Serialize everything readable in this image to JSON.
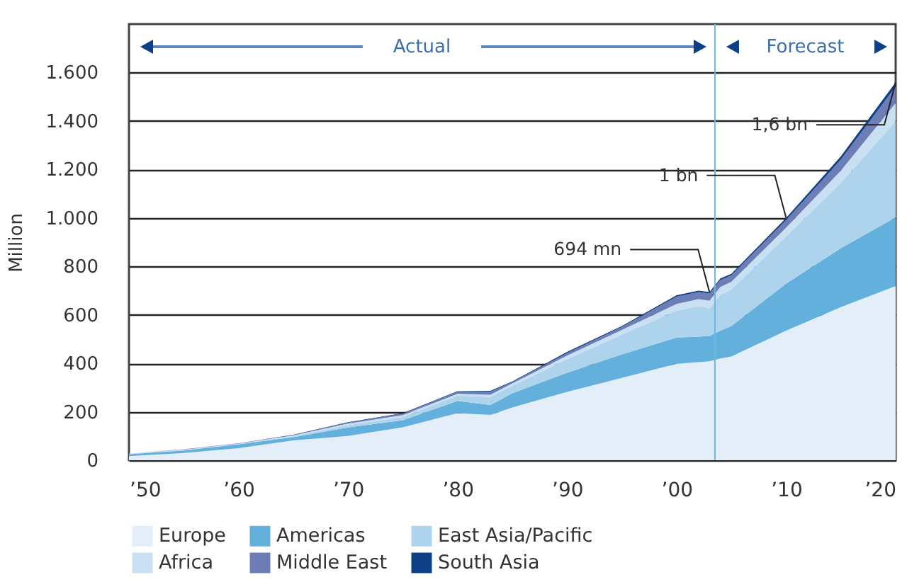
{
  "chart_data": {
    "type": "area",
    "stacked": true,
    "ylabel": "Million",
    "x": [
      1950,
      1955,
      1960,
      1965,
      1970,
      1975,
      1980,
      1983,
      1985,
      1990,
      1995,
      2000,
      2002,
      2003,
      2004,
      2005,
      2010,
      2015,
      2020
    ],
    "series": [
      {
        "name": "Europe",
        "color": "#e3eef8",
        "values": [
          17,
          30,
          50,
          82,
          100,
          136,
          194,
          187,
          218,
          282,
          340,
          398,
          405,
          408,
          420,
          428,
          535,
          632,
          719
        ]
      },
      {
        "name": "Americas",
        "color": "#63b0dc",
        "values": [
          8,
          10,
          16,
          13,
          35,
          29,
          51,
          41,
          58,
          79,
          97,
          108,
          105,
          105,
          115,
          126,
          194,
          243,
          283
        ]
      },
      {
        "name": "East Asia/Pacific",
        "color": "#aed3ec",
        "values": [
          1,
          2,
          1,
          4,
          10,
          13,
          22,
          33,
          31,
          56,
          82,
          111,
          126,
          114,
          147,
          150,
          195,
          270,
          397
        ]
      },
      {
        "name": "Africa",
        "color": "#c9e0f3",
        "values": [
          1,
          2,
          2,
          3,
          6,
          8,
          7,
          9,
          10,
          15,
          19,
          28,
          29,
          31,
          33,
          32,
          36,
          50,
          75
        ]
      },
      {
        "name": "Middle East",
        "color": "#6d7db5",
        "values": [
          0,
          1,
          1,
          2,
          4,
          6,
          8,
          13,
          5,
          10,
          12,
          30,
          29,
          30,
          29,
          27,
          31,
          46,
          68
        ]
      },
      {
        "name": "South Asia",
        "color": "#0d3f87",
        "values": [
          0,
          0,
          0,
          1,
          2,
          2,
          3,
          3,
          3,
          5,
          4,
          6,
          6,
          6,
          6,
          6,
          9,
          13,
          18
        ]
      }
    ],
    "xlim": [
      1950,
      2020
    ],
    "xticks": [
      {
        "value": 1950,
        "label": "’50"
      },
      {
        "value": 1960,
        "label": "’60"
      },
      {
        "value": 1970,
        "label": "’70"
      },
      {
        "value": 1980,
        "label": "’80"
      },
      {
        "value": 1990,
        "label": "’90"
      },
      {
        "value": 2000,
        "label": "’00"
      },
      {
        "value": 2010,
        "label": "’10"
      },
      {
        "value": 2020,
        "label": "’20"
      }
    ],
    "ylim": [
      0,
      1800
    ],
    "yticks": [
      0,
      200,
      400,
      600,
      800,
      {
        "value": 1000,
        "label": "1.000"
      },
      {
        "value": 1200,
        "label": "1.200"
      },
      {
        "value": 1400,
        "label": "1.400"
      },
      {
        "value": 1600,
        "label": "1.600"
      }
    ],
    "grid": "y",
    "legend": "bottom",
    "ref_lines": [
      {
        "axis": "x",
        "value": 2003.5,
        "color": "#6cb8e0"
      }
    ],
    "annotations": [
      "Actual",
      "Forecast",
      {
        "text": "694 mn",
        "x": 2003,
        "y": 694
      },
      {
        "text": "1 bn",
        "x": 2010,
        "y": 1000
      },
      {
        "text": "1,6 bn",
        "x": 2020,
        "y": 1560
      }
    ]
  }
}
